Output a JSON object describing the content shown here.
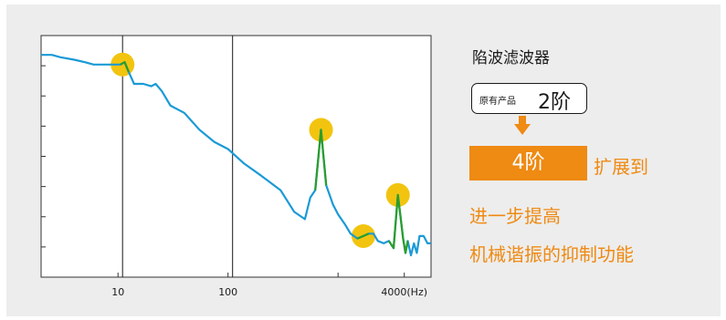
{
  "chart_data": {
    "type": "line",
    "xscale": "log",
    "xlim": [
      2,
      7000
    ],
    "ylim": [
      0,
      1
    ],
    "x_ticks": [
      {
        "value": 10,
        "label": "10"
      },
      {
        "value": 100,
        "label": "100"
      },
      {
        "value": 4000,
        "label": "4000(Hz)"
      }
    ],
    "vertical_lines": [
      11,
      110
    ],
    "grid": false,
    "series": [
      {
        "color": "#1a9ad6",
        "points": [
          [
            2,
            0.92
          ],
          [
            2.5,
            0.92
          ],
          [
            3,
            0.91
          ],
          [
            4,
            0.9
          ],
          [
            5,
            0.89
          ],
          [
            6,
            0.88
          ],
          [
            8,
            0.88
          ],
          [
            10.5,
            0.88
          ],
          [
            11.5,
            0.89
          ],
          [
            12.5,
            0.85
          ],
          [
            14,
            0.8
          ],
          [
            17,
            0.8
          ],
          [
            20,
            0.79
          ],
          [
            22,
            0.8
          ],
          [
            25,
            0.77
          ],
          [
            30,
            0.71
          ],
          [
            40,
            0.68
          ],
          [
            55,
            0.61
          ],
          [
            75,
            0.56
          ],
          [
            100,
            0.53
          ],
          [
            140,
            0.47
          ],
          [
            200,
            0.42
          ],
          [
            300,
            0.36
          ],
          [
            400,
            0.27
          ],
          [
            500,
            0.24
          ],
          [
            560,
            0.33
          ],
          [
            620,
            0.36
          ],
          [
            700,
            0.61
          ],
          [
            780,
            0.38
          ],
          [
            900,
            0.3
          ],
          [
            1000,
            0.26
          ],
          [
            1150,
            0.22
          ],
          [
            1300,
            0.18
          ],
          [
            1500,
            0.16
          ],
          [
            1700,
            0.17
          ],
          [
            1900,
            0.18
          ],
          [
            2100,
            0.18
          ],
          [
            2300,
            0.15
          ],
          [
            2600,
            0.14
          ],
          [
            2900,
            0.15
          ],
          [
            3200,
            0.12
          ],
          [
            3500,
            0.34
          ],
          [
            3700,
            0.25
          ],
          [
            3900,
            0.16
          ],
          [
            4100,
            0.1
          ],
          [
            4300,
            0.15
          ],
          [
            4600,
            0.09
          ],
          [
            4900,
            0.14
          ],
          [
            5200,
            0.1
          ],
          [
            5500,
            0.17
          ],
          [
            6000,
            0.17
          ],
          [
            6500,
            0.14
          ],
          [
            7000,
            0.14
          ]
        ]
      }
    ],
    "notch_markers": [
      {
        "x": 11,
        "y": 0.88
      },
      {
        "x": 700,
        "y": 0.61
      },
      {
        "x": 1700,
        "y": 0.17
      },
      {
        "x": 3500,
        "y": 0.34
      }
    ],
    "marker_color": "#f2c40f",
    "highlight_color": "#2a9d2a"
  },
  "side_panel": {
    "title": "陷波滤波器",
    "original_small": "原有产品",
    "original_big": "2阶",
    "new_value": "4阶",
    "expand_text": "扩展到",
    "line1": "进一步提高",
    "line2": "机械谐振的抑制功能",
    "accent_color": "#ef8a13"
  }
}
